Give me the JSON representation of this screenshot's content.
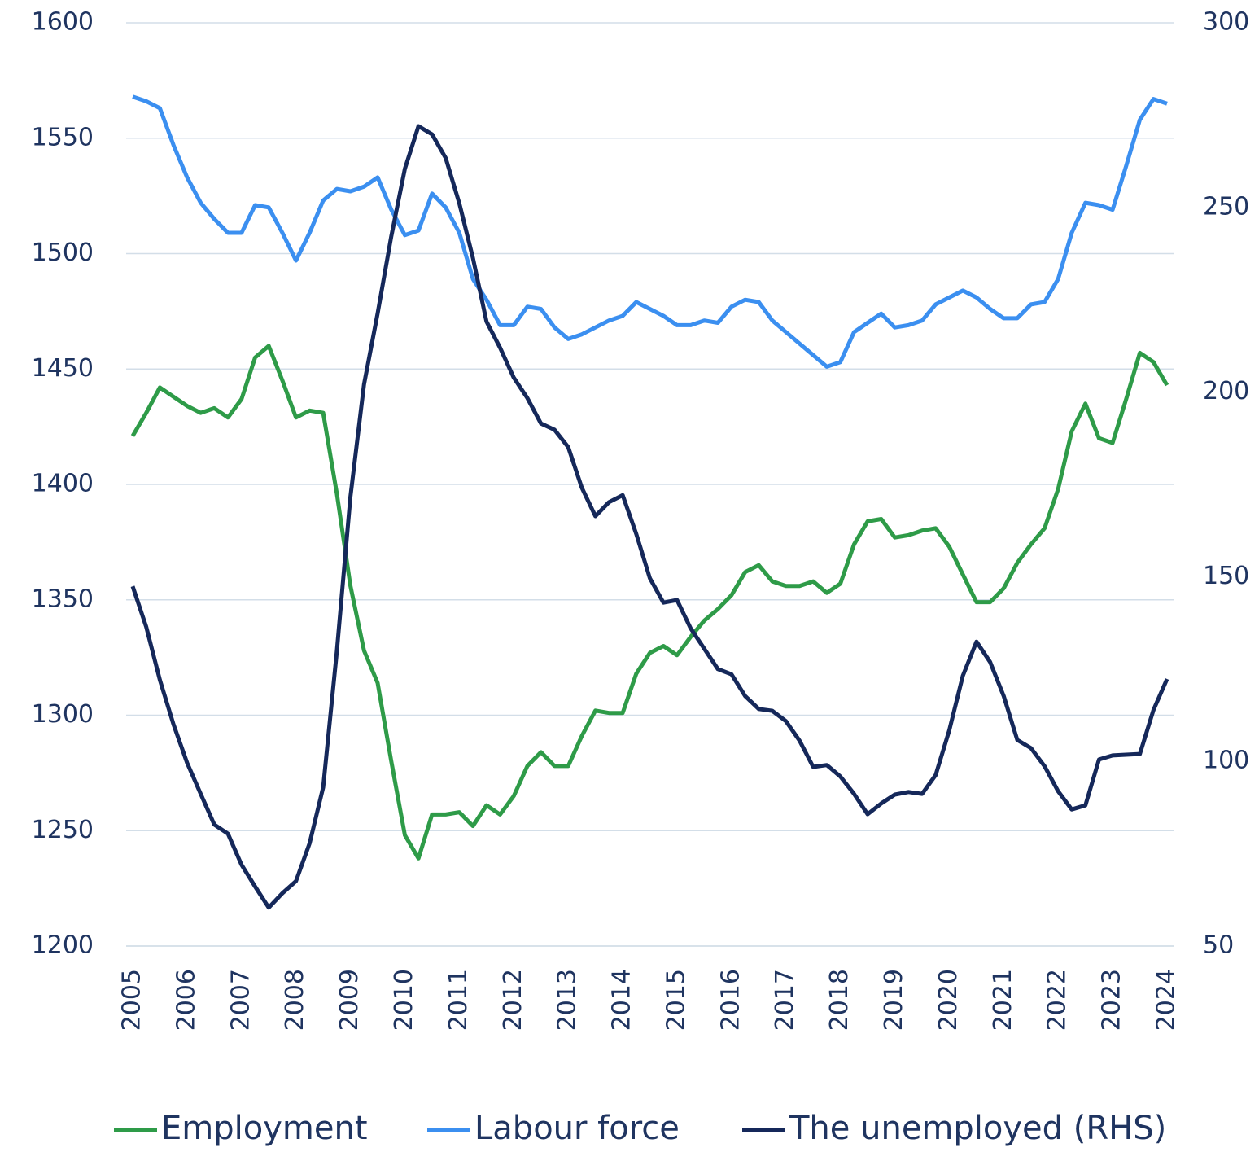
{
  "chart_data": {
    "type": "line",
    "categories": [
      "2005",
      null,
      null,
      null,
      "2006",
      null,
      null,
      null,
      "2007",
      null,
      null,
      null,
      "2008",
      null,
      null,
      null,
      "2009",
      null,
      null,
      null,
      "2010",
      null,
      null,
      null,
      "2011",
      null,
      null,
      null,
      "2012",
      null,
      null,
      null,
      "2013",
      null,
      null,
      null,
      "2014",
      null,
      null,
      null,
      "2015",
      null,
      null,
      null,
      "2016",
      null,
      null,
      null,
      "2017",
      null,
      null,
      null,
      "2018",
      null,
      null,
      null,
      "2019",
      null,
      null,
      null,
      "2020",
      null,
      null,
      null,
      "2021",
      null,
      null,
      null,
      "2022",
      null,
      null,
      null,
      "2023",
      null,
      null,
      null,
      "2024"
    ],
    "series": [
      {
        "name": "Employment",
        "color": "#2e9b48",
        "values": [
          1421,
          1431,
          1442,
          1438,
          1434,
          1431,
          1433,
          1429,
          1437,
          1455,
          1460,
          1445,
          1429,
          1432,
          1431,
          1396,
          1356,
          1328,
          1314,
          1280,
          1248,
          1238,
          1257,
          1257,
          1258,
          1252,
          1261,
          1257,
          1265,
          1278,
          1284,
          1278,
          1278,
          1291,
          1302,
          1301,
          1301,
          1318,
          1327,
          1330,
          1326,
          1334,
          1341,
          1346,
          1352,
          1362,
          1365,
          1358,
          1356,
          1356,
          1358,
          1353,
          1357,
          1374,
          1384,
          1385,
          1377,
          1378,
          1380,
          1381,
          1373,
          1361,
          1349,
          1349,
          1355,
          1366,
          1374,
          1381,
          1398,
          1423,
          1435,
          1420,
          1418,
          1437,
          1457,
          1453,
          1443
        ]
      },
      {
        "name": "Labour force",
        "color": "#3b8ff0",
        "values": [
          1568,
          1566,
          1563,
          1547,
          1533,
          1522,
          1515,
          1509,
          1509,
          1521,
          1520,
          1509,
          1497,
          1509,
          1523,
          1528,
          1527,
          1529,
          1533,
          1519,
          1508,
          1510,
          1526,
          1520,
          1509,
          1489,
          1480,
          1469,
          1469,
          1477,
          1476,
          1468,
          1463,
          1465,
          1468,
          1471,
          1473,
          1479,
          1476,
          1473,
          1469,
          1469,
          1471,
          1470,
          1477,
          1480,
          1479,
          1471,
          1466,
          1461,
          1456,
          1451,
          1453,
          1466,
          1470,
          1474,
          1468,
          1469,
          1471,
          1478,
          1481,
          1484,
          1481,
          1476,
          1472,
          1472,
          1478,
          1479,
          1489,
          1509,
          1522,
          1521,
          1519,
          1538,
          1558,
          1567,
          1565
        ]
      },
      {
        "name": "The unemployed (RHS)",
        "color": "#15285a",
        "axis": "y2",
        "values": [
          147.4,
          136.4,
          122.1,
          110.0,
          99.6,
          91.2,
          82.9,
          80.4,
          72.0,
          66.1,
          60.4,
          64.3,
          67.6,
          77.8,
          93.0,
          129.8,
          171.7,
          202.1,
          221.3,
          242.2,
          260.5,
          272.0,
          269.8,
          263.4,
          251.1,
          236.3,
          219.1,
          212.0,
          203.9,
          198.4,
          191.5,
          189.8,
          185.1,
          174.1,
          166.4,
          170.2,
          172.1,
          161.6,
          149.6,
          143.0,
          143.7,
          136.0,
          130.5,
          125.0,
          123.6,
          117.7,
          114.2,
          113.7,
          110.9,
          105.6,
          98.5,
          99.0,
          95.9,
          91.2,
          85.7,
          88.6,
          91.0,
          91.7,
          91.2,
          96.3,
          108.4,
          123.2,
          132.4,
          126.9,
          117.7,
          105.8,
          103.6,
          98.7,
          91.9,
          87.0,
          88.1,
          100.5,
          101.6,
          101.8,
          102.0,
          113.9,
          122.3
        ]
      }
    ],
    "ylim": [
      1200,
      1600
    ],
    "yticks": [
      1200,
      1250,
      1300,
      1350,
      1400,
      1450,
      1500,
      1550,
      1600
    ],
    "y2lim": [
      50,
      300
    ],
    "y2ticks": [
      50,
      100,
      150,
      200,
      250,
      300
    ],
    "grid": true,
    "legend": "bottom"
  }
}
